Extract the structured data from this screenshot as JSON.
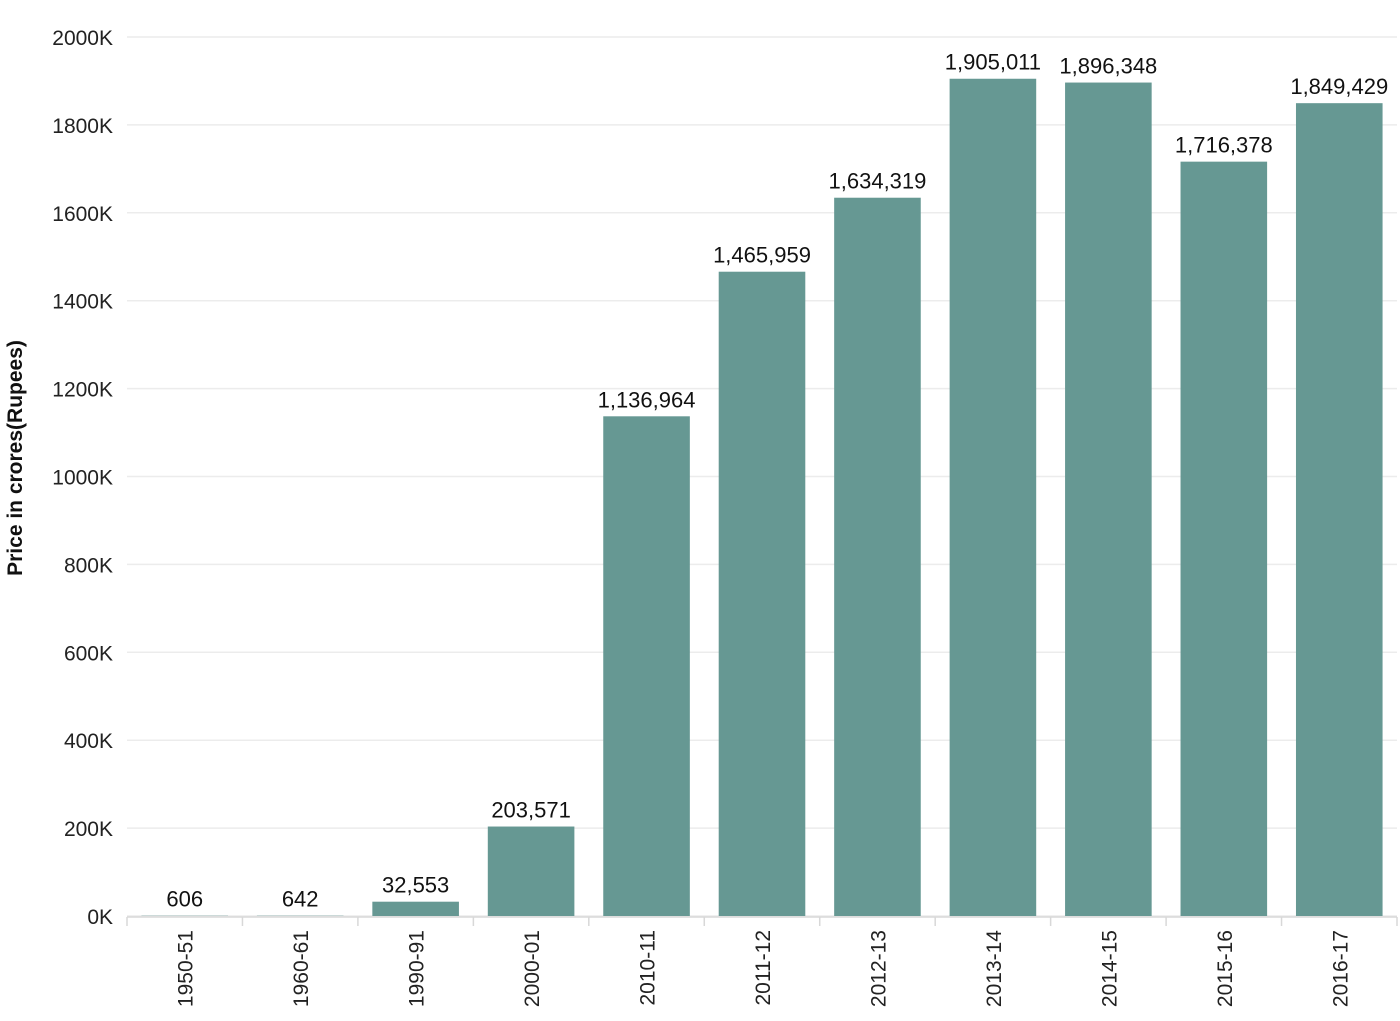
{
  "chart_data": {
    "type": "bar",
    "categories": [
      "1950-51",
      "1960-61",
      "1990-91",
      "2000-01",
      "2010-11",
      "2011-12",
      "2012-13",
      "2013-14",
      "2014-15",
      "2015-16",
      "2016-17"
    ],
    "values": [
      606,
      642,
      32553,
      203571,
      1136964,
      1465959,
      1634319,
      1905011,
      1896348,
      1716378,
      1849429
    ],
    "value_labels": [
      "606",
      "642",
      "32,553",
      "203,571",
      "1,136,964",
      "1,465,959",
      "1,634,319",
      "1,905,011",
      "1,896,348",
      "1,716,378",
      "1,849,429"
    ],
    "ylabel": "Price in crores(Rupees)",
    "xlabel": "",
    "ylim": [
      0,
      2000000
    ],
    "yticks": [
      0,
      200000,
      400000,
      600000,
      800000,
      1000000,
      1200000,
      1400000,
      1600000,
      1800000,
      2000000
    ],
    "ytick_labels": [
      "0K",
      "200K",
      "400K",
      "600K",
      "800K",
      "1000K",
      "1200K",
      "1400K",
      "1600K",
      "1800K",
      "2000K"
    ],
    "grid": true,
    "bar_color": "#669893"
  }
}
